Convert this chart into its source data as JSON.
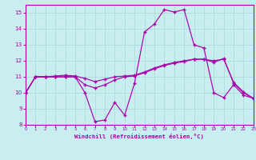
{
  "background_color": "#c8eef0",
  "grid_color": "#b0dede",
  "line_color": "#aa00aa",
  "xlim": [
    0,
    23
  ],
  "ylim": [
    8,
    15.5
  ],
  "yticks": [
    8,
    9,
    10,
    11,
    12,
    13,
    14,
    15
  ],
  "xticks": [
    0,
    1,
    2,
    3,
    4,
    5,
    6,
    7,
    8,
    9,
    10,
    11,
    12,
    13,
    14,
    15,
    16,
    17,
    18,
    19,
    20,
    21,
    22,
    23
  ],
  "xlabel": "Windchill (Refroidissement éolien,°C)",
  "line1_x": [
    0,
    1,
    2,
    3,
    4,
    5,
    6,
    7,
    8,
    9,
    10,
    11,
    12,
    13,
    14,
    15,
    16,
    17,
    18,
    19,
    20,
    21,
    22,
    23
  ],
  "line1_y": [
    10.0,
    11.0,
    11.0,
    11.0,
    11.0,
    11.0,
    10.0,
    8.2,
    8.3,
    9.4,
    8.6,
    10.6,
    13.8,
    14.3,
    15.2,
    15.05,
    15.2,
    13.0,
    12.8,
    10.0,
    9.7,
    10.5,
    9.85,
    9.65
  ],
  "line2_x": [
    0,
    1,
    2,
    3,
    4,
    5,
    6,
    7,
    8,
    9,
    10,
    11,
    12,
    13,
    14,
    15,
    16,
    17,
    18,
    19,
    20,
    21,
    22,
    23
  ],
  "line2_y": [
    10.0,
    11.0,
    11.0,
    11.0,
    11.0,
    11.0,
    10.5,
    10.3,
    10.5,
    10.8,
    11.0,
    11.05,
    11.25,
    11.5,
    11.7,
    11.85,
    11.95,
    12.1,
    12.1,
    11.9,
    12.15,
    10.6,
    10.0,
    9.65
  ],
  "line3_x": [
    0,
    1,
    2,
    3,
    4,
    5,
    6,
    7,
    8,
    9,
    10,
    11,
    12,
    13,
    14,
    15,
    16,
    17,
    18,
    19,
    20,
    21,
    22,
    23
  ],
  "line3_y": [
    10.0,
    11.0,
    11.0,
    11.05,
    11.1,
    11.05,
    10.9,
    10.7,
    10.85,
    11.0,
    11.05,
    11.1,
    11.3,
    11.55,
    11.75,
    11.9,
    12.0,
    12.1,
    12.1,
    12.0,
    12.1,
    10.65,
    10.05,
    9.65
  ]
}
